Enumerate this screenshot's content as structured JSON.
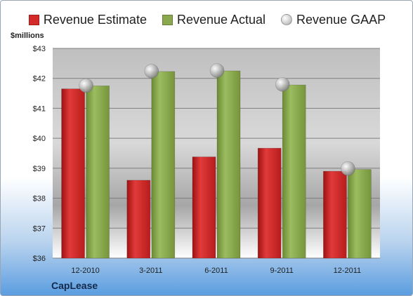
{
  "company": "CapLease",
  "chart_data": {
    "type": "bar",
    "ylabel": "$millions",
    "ylim": [
      36,
      43
    ],
    "yticks": [
      "$36",
      "$37",
      "$38",
      "$39",
      "$40",
      "$41",
      "$42",
      "$43"
    ],
    "categories": [
      "12-2010",
      "3-2011",
      "6-2011",
      "9-2011",
      "12-2011"
    ],
    "series": [
      {
        "name": "Revenue Estimate",
        "kind": "bar",
        "color": "#d42a2a",
        "values": [
          41.65,
          38.6,
          39.38,
          39.67,
          38.9
        ]
      },
      {
        "name": "Revenue Actual",
        "kind": "bar",
        "color": "#8aa84e",
        "values": [
          41.75,
          42.23,
          42.25,
          41.78,
          38.96
        ]
      },
      {
        "name": "Revenue GAAP",
        "kind": "marker",
        "color": "#bfbfbf",
        "values": [
          41.76,
          42.24,
          42.26,
          41.8,
          38.99
        ]
      }
    ],
    "grid": true,
    "legend_position": "top"
  }
}
